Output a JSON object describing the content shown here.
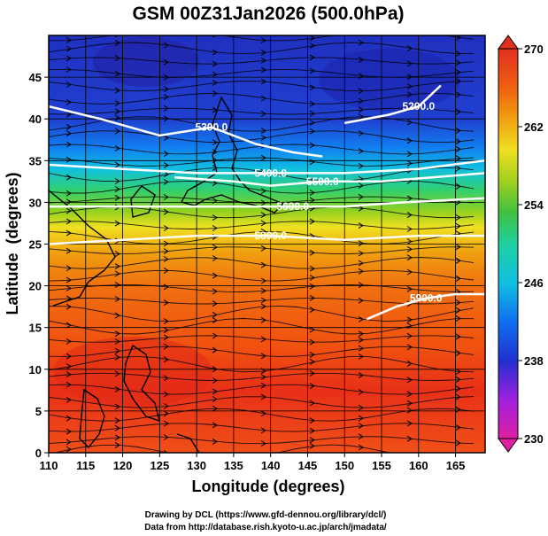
{
  "chart_data": {
    "type": "heatmap",
    "title": "GSM 00Z31Jan2026 (500.0hPa)",
    "xlabel": "Longitude (degrees)",
    "ylabel": "Latitude  (degrees)",
    "xlim": [
      110,
      169
    ],
    "ylim": [
      0,
      50
    ],
    "xticks": [
      "110",
      "115",
      "120",
      "125",
      "130",
      "135",
      "140",
      "145",
      "150",
      "155",
      "160",
      "165"
    ],
    "yticks": [
      "0",
      "5",
      "10",
      "15",
      "20",
      "25",
      "30",
      "35",
      "40",
      "45"
    ],
    "colorbar": {
      "min": 230,
      "max": 270,
      "ticks": [
        "230",
        "238",
        "246",
        "254",
        "262",
        "270"
      ],
      "colors": [
        "#e020a0",
        "#a020e0",
        "#2030d0",
        "#1070f0",
        "#10c0e0",
        "#20d0a0",
        "#40c040",
        "#a0d020",
        "#f0e020",
        "#f0a010",
        "#f06010",
        "#e03020"
      ]
    },
    "field_by_latitude": {
      "latitudes": [
        0,
        5,
        10,
        15,
        20,
        25,
        30,
        35,
        40,
        45,
        50
      ],
      "temperature_K": [
        267,
        266,
        266,
        265,
        264,
        262,
        257,
        251,
        244,
        239,
        237
      ]
    },
    "contours": [
      {
        "label": "5300.0",
        "lon": [
          110,
          117,
          125,
          132,
          138,
          143,
          147
        ],
        "lat": [
          41.5,
          40,
          38,
          39,
          37,
          36,
          35.5
        ]
      },
      {
        "label": "5200.0",
        "lon": [
          150,
          156,
          160,
          163
        ],
        "lat": [
          39.5,
          40.5,
          41.5,
          44
        ]
      },
      {
        "label": "5400.0",
        "lon": [
          110,
          120,
          130,
          140,
          150,
          160,
          169
        ],
        "lat": [
          34.5,
          34,
          33.5,
          33.5,
          33.5,
          34,
          35
        ]
      },
      {
        "label": "5500.0",
        "lon": [
          127,
          135,
          140,
          147,
          155,
          162,
          169
        ],
        "lat": [
          33,
          32.5,
          32,
          32.5,
          32.5,
          33,
          33.5
        ]
      },
      {
        "label": "5600.0",
        "lon": [
          110,
          122,
          135,
          143,
          150,
          158,
          169
        ],
        "lat": [
          29.5,
          29.5,
          29.5,
          29.5,
          29.5,
          30,
          30.5
        ]
      },
      {
        "label": "5800.0",
        "lon": [
          110,
          120,
          130,
          140,
          150,
          160,
          169
        ],
        "lat": [
          25,
          25.5,
          26,
          26,
          25.5,
          26,
          26
        ]
      },
      {
        "label": "5900.0",
        "lon": [
          153,
          157,
          161,
          165,
          169
        ],
        "lat": [
          16,
          17.5,
          18.5,
          19,
          19
        ]
      }
    ],
    "credits": [
      "Drawing by DCL (https://www.gfd-dennou.org/library/dcl/)",
      "Data from http://database.rish.kyoto-u.ac.jp/arch/jmadata/"
    ]
  }
}
